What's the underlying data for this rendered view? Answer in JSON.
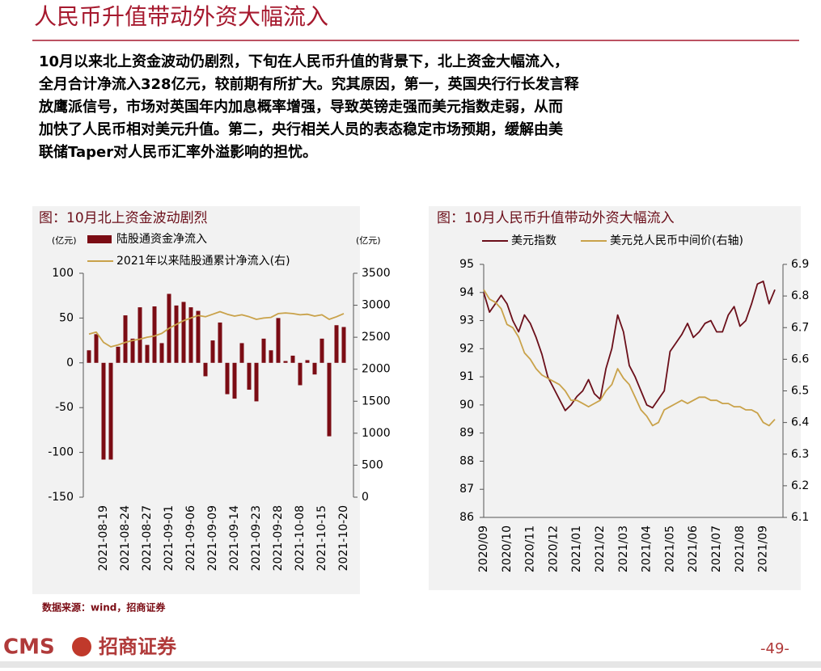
{
  "header": {
    "title": "人民币升值带动外资大幅流入"
  },
  "body": {
    "lines": [
      "10月以来北上资金波动仍剧烈，下旬在人民币升值的背景下，北上资金大幅流入，",
      "全月合计净流入328亿元，较前期有所扩大。究其原因，第一，英国央行行长发言释",
      "放鹰派信号，市场对英国年内加息概率增强，导致英镑走强而美元指数走弱，从而",
      "加快了人民币相对美元升值。第二，央行相关人员的表态稳定市场预期，缓解由美",
      "联储Taper对人民币汇率外溢影响的担忧。"
    ]
  },
  "chart_data": [
    {
      "type": "combo",
      "title": "图：10月北上资金波动剧烈",
      "y_unit": "(亿元)",
      "y2_unit": "(亿元)",
      "categories": [
        null,
        null,
        "2021-08-19",
        null,
        null,
        "2021-08-24",
        null,
        null,
        "2021-08-27",
        null,
        null,
        "2021-09-01",
        null,
        null,
        "2021-09-06",
        null,
        null,
        "2021-09-09",
        null,
        null,
        "2021-09-14",
        null,
        null,
        "2021-09-23",
        null,
        null,
        "2021-09-28",
        null,
        null,
        "2021-10-08",
        null,
        null,
        "2021-10-15",
        null,
        null,
        "2021-10-20"
      ],
      "series": [
        {
          "name": "陆股通资金净流入",
          "color": "#7b0c14",
          "type": "bar",
          "values": [
            14,
            32,
            -108,
            -108,
            18,
            53,
            27,
            62,
            20,
            63,
            22,
            77,
            64,
            68,
            62,
            58,
            -15,
            25,
            45,
            -35,
            -40,
            22,
            -30,
            -43,
            27,
            14,
            50,
            2,
            8,
            -25,
            3,
            -13,
            27,
            -82,
            42,
            40
          ]
        },
        {
          "name": "2021年以来陆股通累计净流入(右)",
          "color": "#c9a24a",
          "type": "line",
          "axis": "y2",
          "values": [
            2550,
            2580,
            2420,
            2350,
            2380,
            2420,
            2450,
            2470,
            2500,
            2520,
            2560,
            2640,
            2700,
            2760,
            2800,
            2840,
            2820,
            2860,
            2900,
            2860,
            2830,
            2850,
            2820,
            2780,
            2800,
            2810,
            2870,
            2880,
            2870,
            2850,
            2860,
            2830,
            2850,
            2780,
            2820,
            2870
          ]
        }
      ],
      "ylim": [
        -150,
        100
      ],
      "yticks": [
        -150,
        -100,
        -50,
        0,
        50,
        100
      ],
      "y2lim": [
        0,
        3500
      ],
      "y2ticks": [
        0,
        500,
        1000,
        1500,
        2000,
        2500,
        3000,
        3500
      ]
    },
    {
      "type": "line",
      "title": "图：10月人民币升值带动外资大幅流入",
      "categories": [
        "2020/09",
        null,
        null,
        null,
        "2020/10",
        null,
        null,
        null,
        "2020/11",
        null,
        null,
        null,
        "2020/12",
        null,
        null,
        null,
        "2021/01",
        null,
        null,
        null,
        "2021/02",
        null,
        null,
        null,
        "2021/03",
        null,
        null,
        null,
        "2021/04",
        null,
        null,
        null,
        "2021/05",
        null,
        null,
        null,
        "2021/06",
        null,
        null,
        null,
        "2021/07",
        null,
        null,
        null,
        "2021/08",
        null,
        null,
        null,
        "2021/09",
        null,
        null
      ],
      "series": [
        {
          "name": "美元指数",
          "color": "#6b0f1a",
          "values": [
            94.0,
            93.3,
            93.6,
            93.9,
            93.6,
            93.0,
            92.6,
            93.2,
            92.9,
            92.4,
            91.8,
            91.0,
            90.6,
            90.2,
            89.8,
            90.0,
            90.3,
            90.5,
            90.9,
            90.4,
            90.2,
            91.3,
            92.0,
            93.2,
            92.6,
            91.4,
            91.0,
            90.5,
            90.0,
            89.9,
            90.2,
            90.5,
            91.9,
            92.2,
            92.5,
            92.9,
            92.4,
            92.6,
            92.9,
            93.0,
            92.6,
            92.6,
            93.2,
            93.5,
            92.8,
            93.0,
            93.6,
            94.3,
            94.4,
            93.6,
            94.1
          ]
        },
        {
          "name": "美元兑人民币中间价(右轴)",
          "color": "#c9a24a",
          "axis": "y2",
          "values": [
            6.82,
            6.79,
            6.78,
            6.76,
            6.71,
            6.7,
            6.67,
            6.62,
            6.6,
            6.57,
            6.55,
            6.54,
            6.53,
            6.52,
            6.5,
            6.47,
            6.47,
            6.46,
            6.45,
            6.46,
            6.47,
            6.5,
            6.52,
            6.57,
            6.54,
            6.52,
            6.48,
            6.44,
            6.42,
            6.39,
            6.4,
            6.44,
            6.45,
            6.46,
            6.47,
            6.46,
            6.47,
            6.48,
            6.48,
            6.47,
            6.47,
            6.46,
            6.46,
            6.45,
            6.45,
            6.44,
            6.44,
            6.43,
            6.4,
            6.39,
            6.41
          ]
        }
      ],
      "ylim": [
        86,
        95
      ],
      "yticks": [
        86,
        87,
        88,
        89,
        90,
        91,
        92,
        93,
        94,
        95
      ],
      "y2lim": [
        6.1,
        6.9
      ],
      "y2ticks": [
        6.1,
        6.2,
        6.3,
        6.4,
        6.5,
        6.6,
        6.7,
        6.8,
        6.9
      ]
    }
  ],
  "footer": {
    "source": "数据来源：wind，招商证券",
    "logo_en": "CMS",
    "logo_cn": "招商证券",
    "page": "-49-"
  }
}
